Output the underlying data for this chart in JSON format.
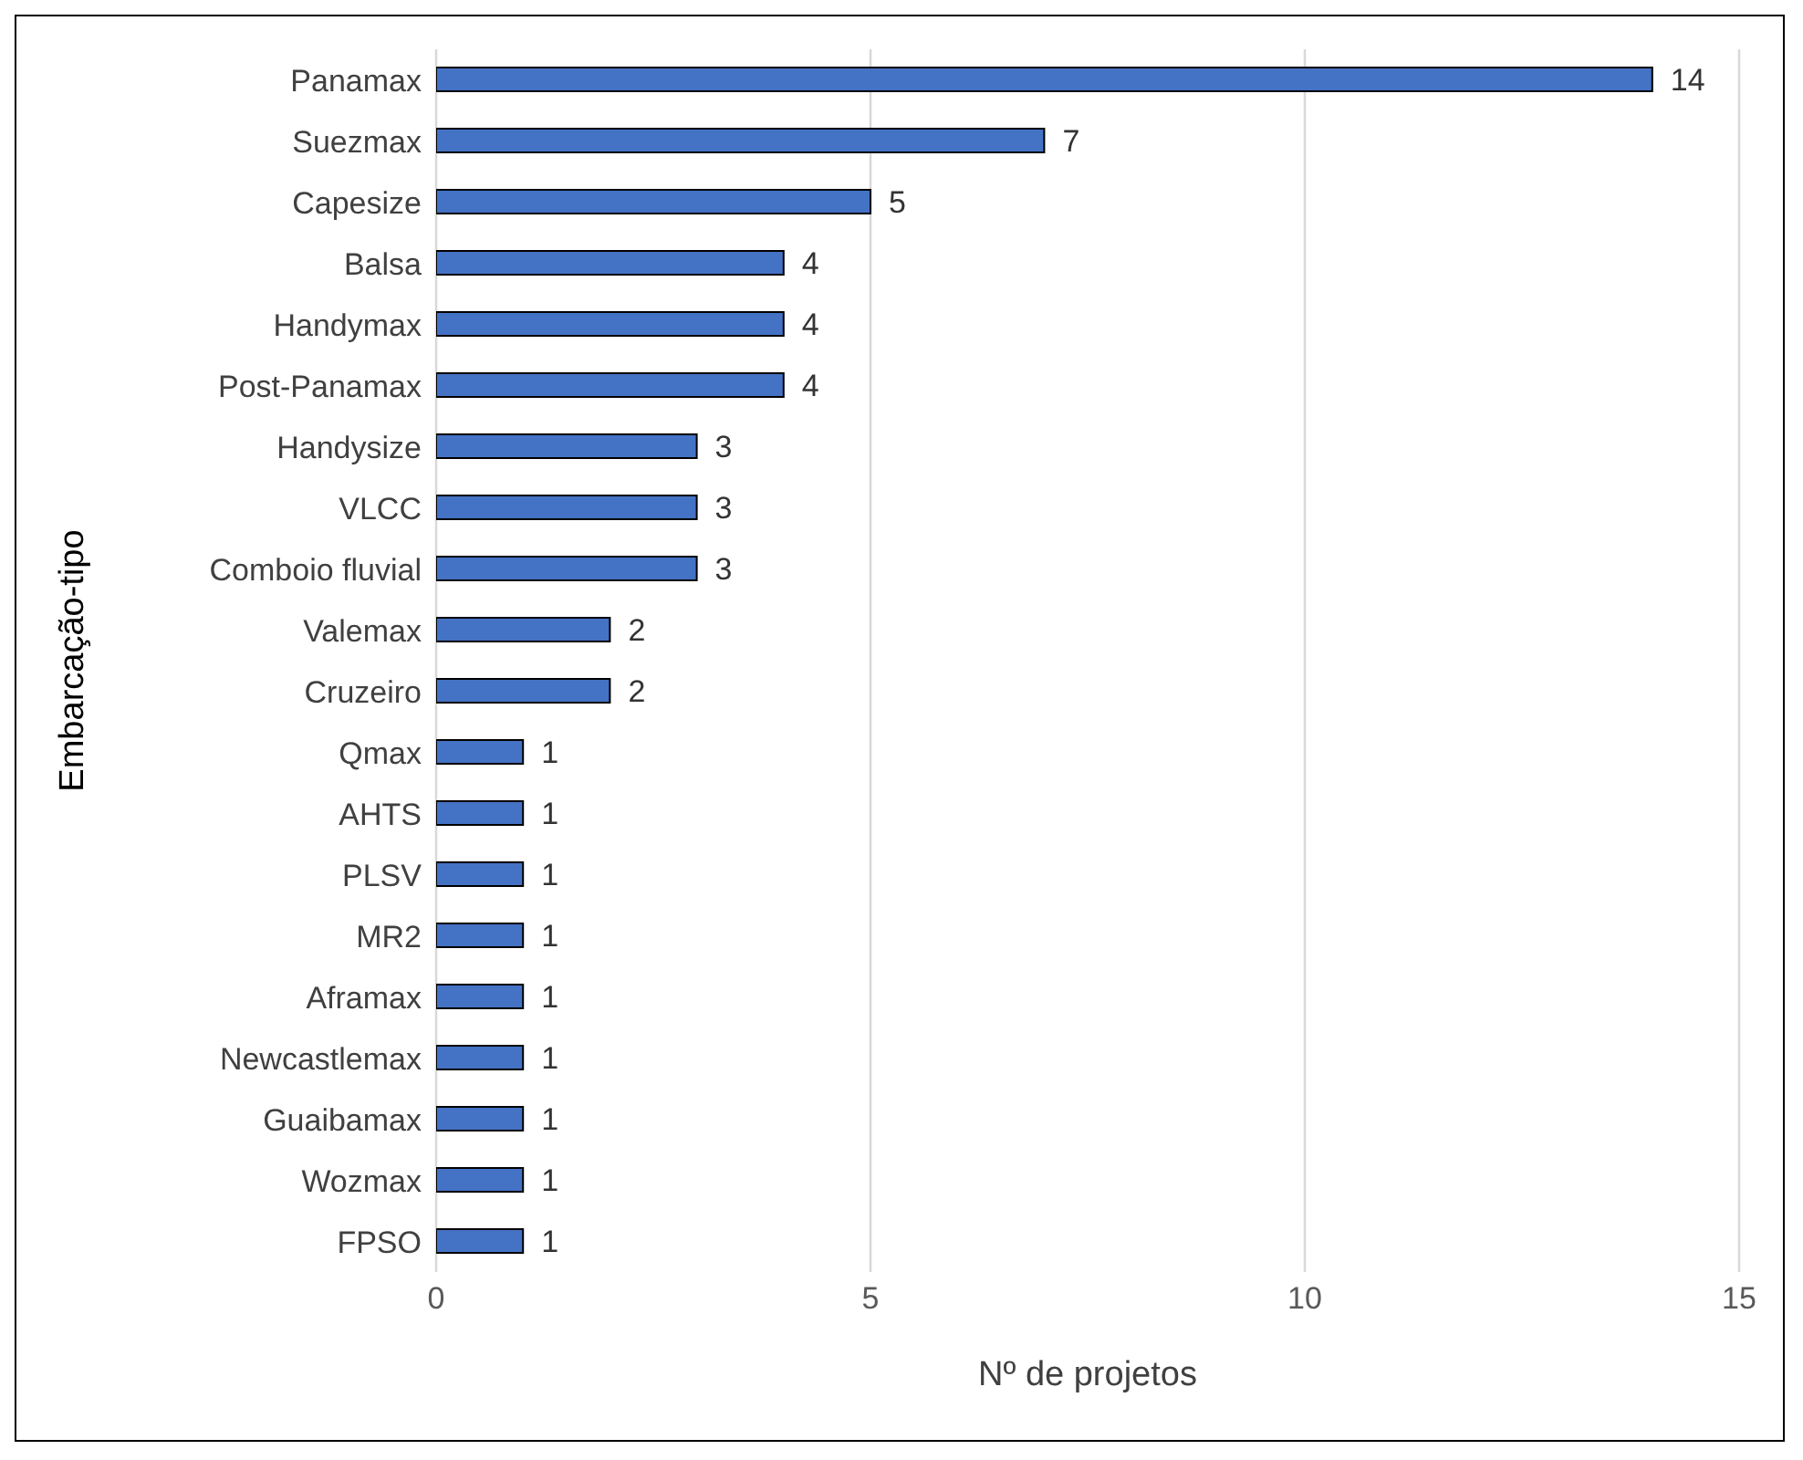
{
  "chart_data": {
    "type": "bar",
    "orientation": "horizontal",
    "xlabel": "Nº de projetos",
    "ylabel": "Embarcação-tipo",
    "categories": [
      "Panamax",
      "Suezmax",
      "Capesize",
      "Balsa",
      "Handymax",
      "Post-Panamax",
      "Handysize",
      "VLCC",
      "Comboio fluvial",
      "Valemax",
      "Cruzeiro",
      "Qmax",
      "AHTS",
      "PLSV",
      "MR2",
      "Aframax",
      "Newcastlemax",
      "Guaibamax",
      "Wozmax",
      "FPSO"
    ],
    "values": [
      14,
      7,
      5,
      4,
      4,
      4,
      3,
      3,
      3,
      2,
      2,
      1,
      1,
      1,
      1,
      1,
      1,
      1,
      1,
      1
    ],
    "color": "#4472c4",
    "xlim": [
      0,
      15
    ],
    "xticks": [
      0,
      5,
      10,
      15
    ],
    "grid": "x",
    "data_labels": true
  }
}
